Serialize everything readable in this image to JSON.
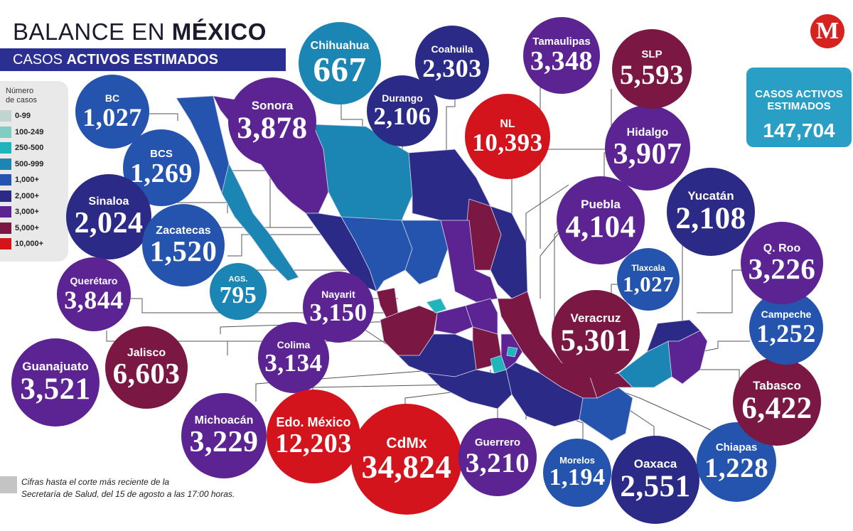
{
  "title": {
    "light": "BALANCE EN ",
    "bold": "MÉXICO"
  },
  "subtitle": {
    "light": "CASOS ",
    "bold": "ACTIVOS ESTIMADOS"
  },
  "logo": {
    "letter": "M"
  },
  "legend": {
    "title_line1": "Número",
    "title_line2": "de casos",
    "items": [
      {
        "label": "0-99",
        "color": "#c1d4d0"
      },
      {
        "label": "100-249",
        "color": "#7ecfc1"
      },
      {
        "label": "250-500",
        "color": "#1fb5bd"
      },
      {
        "label": "500-999",
        "color": "#1b86b4"
      },
      {
        "label": "1,000+",
        "color": "#2454ad"
      },
      {
        "label": "2,000+",
        "color": "#2b2a87"
      },
      {
        "label": "3,000+",
        "color": "#5c2393"
      },
      {
        "label": "5,000+",
        "color": "#7a1743"
      },
      {
        "label": "10,000+",
        "color": "#d3141d"
      }
    ]
  },
  "total": {
    "label_line1": "CASOS ACTIVOS",
    "label_line2": "ESTIMADOS",
    "value": "147,704"
  },
  "footnote": {
    "line1": "Cifras hasta el corte más reciente de la",
    "line2": "Secretaría de Salud, del 15 de agosto a las 17:00 horas."
  },
  "states": [
    {
      "name": "BC",
      "value": "1,027",
      "color": "#2454ad"
    },
    {
      "name": "BCS",
      "value": "1,269",
      "color": "#2454ad"
    },
    {
      "name": "Sinaloa",
      "value": "2,024",
      "color": "#2b2a87"
    },
    {
      "name": "Zacatecas",
      "value": "1,520",
      "color": "#2454ad"
    },
    {
      "name": "AGS.",
      "value": "795",
      "color": "#1b86b4"
    },
    {
      "name": "Querétaro",
      "value": "3,844",
      "color": "#5c2393"
    },
    {
      "name": "Guanajuato",
      "value": "3,521",
      "color": "#5c2393"
    },
    {
      "name": "Jalisco",
      "value": "6,603",
      "color": "#7a1743"
    },
    {
      "name": "Colima",
      "value": "3,134",
      "color": "#5c2393"
    },
    {
      "name": "Nayarit",
      "value": "3,150",
      "color": "#5c2393"
    },
    {
      "name": "Michoacán",
      "value": "3,229",
      "color": "#5c2393"
    },
    {
      "name": "Edo. México",
      "value": "12,203",
      "color": "#d3141d"
    },
    {
      "name": "CdMx",
      "value": "34,824",
      "color": "#d3141d"
    },
    {
      "name": "Guerrero",
      "value": "3,210",
      "color": "#5c2393"
    },
    {
      "name": "Morelos",
      "value": "1,194",
      "color": "#2454ad"
    },
    {
      "name": "Oaxaca",
      "value": "2,551",
      "color": "#2b2a87"
    },
    {
      "name": "Chiapas",
      "value": "1,228",
      "color": "#2454ad"
    },
    {
      "name": "Tabasco",
      "value": "6,422",
      "color": "#7a1743"
    },
    {
      "name": "Campeche",
      "value": "1,252",
      "color": "#2454ad"
    },
    {
      "name": "Q. Roo",
      "value": "3,226",
      "color": "#5c2393"
    },
    {
      "name": "Veracruz",
      "value": "5,301",
      "color": "#7a1743"
    },
    {
      "name": "Tlaxcala",
      "value": "1,027",
      "color": "#2454ad"
    },
    {
      "name": "Yucatán",
      "value": "2,108",
      "color": "#2b2a87"
    },
    {
      "name": "Puebla",
      "value": "4,104",
      "color": "#5c2393"
    },
    {
      "name": "Hidalgo",
      "value": "3,907",
      "color": "#5c2393"
    },
    {
      "name": "SLP",
      "value": "5,593",
      "color": "#7a1743"
    },
    {
      "name": "NL",
      "value": "10,393",
      "color": "#d3141d"
    },
    {
      "name": "Tamaulipas",
      "value": "3,348",
      "color": "#5c2393"
    },
    {
      "name": "Coahuila",
      "value": "2,303",
      "color": "#2b2a87"
    },
    {
      "name": "Durango",
      "value": "2,106",
      "color": "#2b2a87"
    },
    {
      "name": "Chihuahua",
      "value": "667",
      "color": "#1b86b4"
    },
    {
      "name": "Sonora",
      "value": "3,878",
      "color": "#5c2393"
    }
  ]
}
